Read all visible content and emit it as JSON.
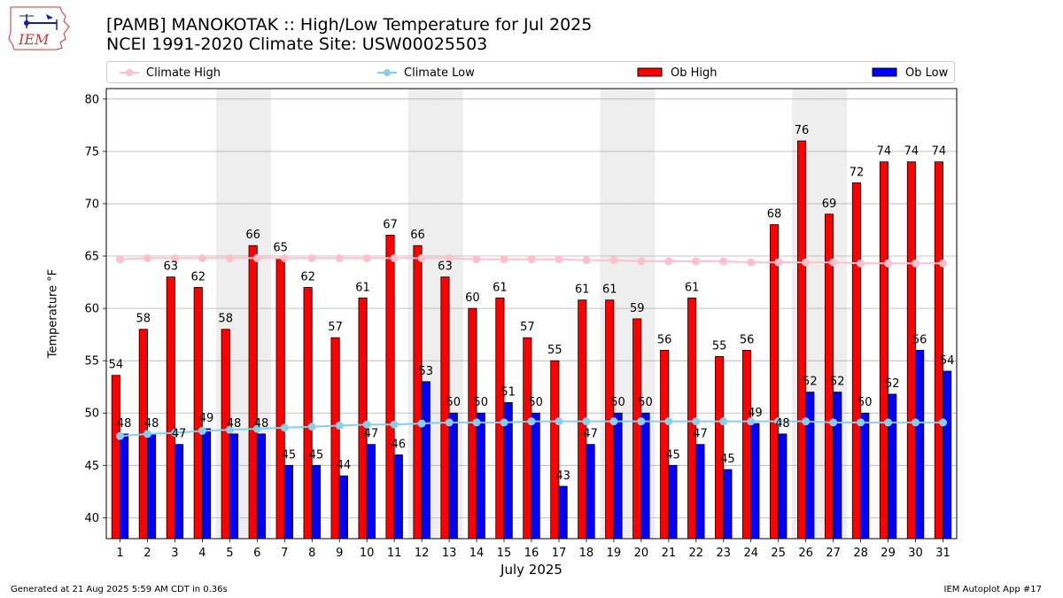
{
  "title_line1": "[PAMB] MANOKOTAK :: High/Low Temperature for Jul 2025",
  "title_line2": "NCEI 1991-2020 Climate Site: USW00025503",
  "logo_text": "IEM",
  "footer": {
    "generated": "Generated at 21 Aug 2025 5:59 AM CDT in 0.36s",
    "app": "IEM Autoplot App #17"
  },
  "legend": {
    "climate_high": "Climate High",
    "climate_low": "Climate Low",
    "ob_high": "Ob High",
    "ob_low": "Ob Low"
  },
  "colors": {
    "ob_high": "#ff0000",
    "ob_low": "#0000ff",
    "climate_high": "#ffc0cb",
    "climate_low": "#87ceeb",
    "weekend": "#eeeeee",
    "grid": "#b0b0b0"
  },
  "chart_data": {
    "type": "bar",
    "xlabel": "July 2025",
    "ylabel": "Temperature °F",
    "ylim": [
      38,
      81
    ],
    "yticks": [
      40,
      45,
      50,
      55,
      60,
      65,
      70,
      75,
      80
    ],
    "grid": true,
    "legend_position": "top",
    "categories": [
      "1",
      "2",
      "3",
      "4",
      "5",
      "6",
      "7",
      "8",
      "9",
      "10",
      "11",
      "12",
      "13",
      "14",
      "15",
      "16",
      "17",
      "18",
      "19",
      "20",
      "21",
      "22",
      "23",
      "24",
      "25",
      "26",
      "27",
      "28",
      "29",
      "30",
      "31"
    ],
    "shaded_days": [
      5,
      6,
      12,
      13,
      19,
      20,
      26,
      27
    ],
    "series": [
      {
        "name": "Ob High",
        "values": [
          53.6,
          58,
          63,
          62,
          58,
          66,
          64.8,
          62,
          57.2,
          61,
          67,
          66,
          63,
          60,
          61,
          57.2,
          55,
          60.8,
          60.8,
          59,
          56,
          61,
          55.4,
          56,
          68,
          76,
          69,
          72,
          74,
          74,
          74
        ],
        "labels": [
          "54",
          "58",
          "63",
          "62",
          "58",
          "66",
          "65",
          "62",
          "57",
          "61",
          "67",
          "66",
          "63",
          "60",
          "61",
          "57",
          "55",
          "61",
          "61",
          "59",
          "56",
          "61",
          "55",
          "56",
          "68",
          "76",
          "69",
          "72",
          "74",
          "74",
          "74"
        ]
      },
      {
        "name": "Ob Low",
        "values": [
          48,
          48,
          47,
          48.5,
          48,
          48,
          45,
          45,
          44,
          47,
          46,
          53,
          50,
          50,
          51,
          50,
          43,
          47,
          50,
          50,
          45,
          47,
          44.6,
          49,
          48,
          52,
          52,
          50,
          51.8,
          56,
          54
        ],
        "labels": [
          "48",
          "48",
          "47",
          "49",
          "48",
          "48",
          "45",
          "45",
          "44",
          "47",
          "46",
          "53",
          "50",
          "50",
          "51",
          "50",
          "43",
          "47",
          "50",
          "50",
          "45",
          "47",
          "45",
          "49",
          "48",
          "52",
          "52",
          "50",
          "52",
          "56",
          "54"
        ]
      },
      {
        "name": "Climate High",
        "values": [
          64.7,
          64.8,
          64.8,
          64.8,
          64.8,
          64.8,
          64.8,
          64.8,
          64.8,
          64.8,
          64.8,
          64.8,
          64.8,
          64.7,
          64.7,
          64.7,
          64.7,
          64.6,
          64.6,
          64.5,
          64.5,
          64.5,
          64.5,
          64.4,
          64.4,
          64.4,
          64.4,
          64.3,
          64.3,
          64.3,
          64.3
        ]
      },
      {
        "name": "Climate Low",
        "values": [
          47.8,
          48.0,
          48.1,
          48.3,
          48.4,
          48.5,
          48.6,
          48.7,
          48.8,
          48.9,
          48.9,
          49.0,
          49.1,
          49.1,
          49.1,
          49.2,
          49.2,
          49.2,
          49.2,
          49.2,
          49.2,
          49.2,
          49.2,
          49.2,
          49.2,
          49.2,
          49.1,
          49.1,
          49.1,
          49.1,
          49.1
        ]
      }
    ]
  }
}
